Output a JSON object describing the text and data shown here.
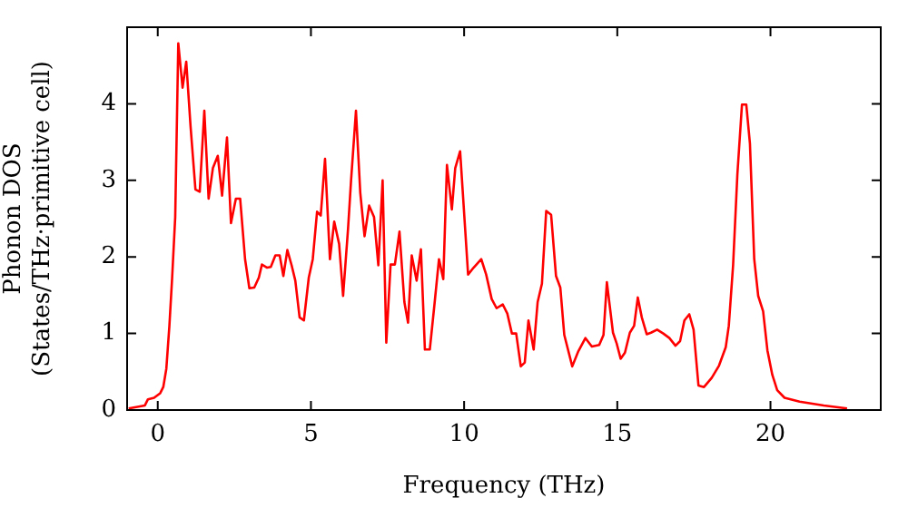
{
  "chart_data": {
    "type": "line",
    "xlabel": "Frequency (THz)",
    "ylabel": "Phonon DOS\n(States/THz·primitive cell)",
    "xlim": [
      -1,
      23.6
    ],
    "ylim": [
      0,
      5
    ],
    "xticks": [
      0,
      5,
      10,
      15,
      20
    ],
    "yticks": [
      0,
      1,
      2,
      3,
      4
    ],
    "legend": false,
    "marker": "none",
    "line_style": "solid",
    "series": [
      {
        "color": "#ff0000",
        "x": [
          -0.95,
          -0.42,
          -0.32,
          -0.12,
          0.08,
          0.18,
          0.28,
          0.38,
          0.47,
          0.57,
          0.67,
          0.81,
          0.93,
          1.07,
          1.23,
          1.37,
          1.52,
          1.66,
          1.8,
          1.96,
          2.1,
          2.26,
          2.39,
          2.55,
          2.69,
          2.85,
          2.99,
          3.15,
          3.3,
          3.4,
          3.57,
          3.69,
          3.84,
          3.98,
          4.1,
          4.23,
          4.37,
          4.49,
          4.63,
          4.77,
          4.93,
          5.06,
          5.2,
          5.32,
          5.46,
          5.62,
          5.76,
          5.92,
          6.05,
          6.21,
          6.31,
          6.47,
          6.61,
          6.75,
          6.9,
          7.06,
          7.2,
          7.34,
          7.46,
          7.6,
          7.74,
          7.89,
          8.05,
          8.17,
          8.29,
          8.45,
          8.59,
          8.72,
          8.88,
          9.04,
          9.18,
          9.32,
          9.44,
          9.6,
          9.71,
          9.87,
          10.13,
          10.31,
          10.56,
          10.72,
          10.9,
          11.06,
          11.26,
          11.41,
          11.56,
          11.7,
          11.85,
          11.98,
          12.1,
          12.27,
          12.4,
          12.54,
          12.68,
          12.84,
          13.0,
          13.14,
          13.27,
          13.53,
          13.73,
          13.96,
          14.17,
          14.41,
          14.55,
          14.66,
          14.86,
          14.98,
          15.11,
          15.25,
          15.41,
          15.55,
          15.67,
          15.8,
          15.96,
          16.1,
          16.3,
          16.5,
          16.7,
          16.9,
          17.05,
          17.19,
          17.35,
          17.49,
          17.65,
          17.83,
          18.08,
          18.32,
          18.54,
          18.64,
          18.78,
          18.92,
          19.07,
          19.21,
          19.33,
          19.47,
          19.6,
          19.76,
          19.9,
          20.06,
          20.22,
          20.46,
          20.95,
          21.74,
          22.5
        ],
        "values": [
          0.02,
          0.06,
          0.14,
          0.16,
          0.22,
          0.3,
          0.54,
          1.1,
          1.73,
          2.52,
          4.79,
          4.21,
          4.55,
          3.71,
          2.88,
          2.85,
          3.91,
          2.76,
          3.16,
          3.32,
          2.8,
          3.56,
          2.44,
          2.76,
          2.76,
          1.97,
          1.59,
          1.6,
          1.73,
          1.9,
          1.86,
          1.87,
          2.02,
          2.02,
          1.75,
          2.09,
          1.89,
          1.69,
          1.21,
          1.17,
          1.73,
          1.97,
          2.59,
          2.54,
          3.28,
          1.97,
          2.46,
          2.17,
          1.49,
          2.36,
          3.0,
          3.91,
          2.84,
          2.27,
          2.67,
          2.52,
          1.89,
          3.0,
          0.88,
          1.9,
          1.9,
          2.33,
          1.41,
          1.14,
          2.02,
          1.69,
          2.1,
          0.79,
          0.79,
          1.41,
          1.97,
          1.71,
          3.2,
          2.62,
          3.16,
          3.38,
          1.77,
          1.86,
          1.97,
          1.77,
          1.45,
          1.33,
          1.38,
          1.26,
          1.0,
          1.0,
          0.57,
          0.62,
          1.17,
          0.79,
          1.41,
          1.65,
          2.6,
          2.55,
          1.75,
          1.6,
          0.98,
          0.57,
          0.77,
          0.94,
          0.83,
          0.85,
          0.98,
          1.67,
          1.01,
          0.87,
          0.67,
          0.75,
          1.01,
          1.1,
          1.47,
          1.21,
          0.99,
          1.01,
          1.05,
          1.0,
          0.94,
          0.84,
          0.9,
          1.17,
          1.25,
          1.05,
          0.32,
          0.3,
          0.42,
          0.58,
          0.82,
          1.1,
          1.89,
          3.08,
          3.99,
          3.99,
          3.48,
          1.97,
          1.49,
          1.29,
          0.78,
          0.46,
          0.26,
          0.16,
          0.11,
          0.06,
          0.02
        ]
      }
    ]
  }
}
